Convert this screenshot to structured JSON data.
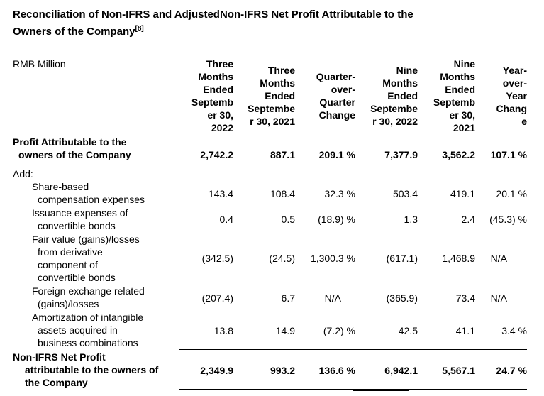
{
  "title": {
    "line1": "Reconciliation of Non-IFRS and AdjustedNon-IFRS Net Profit Attributable to the",
    "line2": "Owners of the Company",
    "footnote": "[8]"
  },
  "unit_label": "RMB Million",
  "columns": [
    [
      "Three",
      "Months",
      "Ended",
      "Septemb",
      "er 30,",
      "2022"
    ],
    [
      "Three",
      "Months",
      "Ended",
      "Septembe",
      "r 30, 2021"
    ],
    [
      "Quarter-",
      "over-",
      "Quarter",
      "Change"
    ],
    [
      "Nine",
      "Months",
      "Ended",
      "Septembe",
      "r 30, 2022"
    ],
    [
      "Nine",
      "Months",
      "Ended",
      "Septemb",
      "er 30,",
      "2021"
    ],
    [
      "Year-",
      "over-",
      "Year",
      "Chang",
      "e"
    ]
  ],
  "rows": {
    "profit": {
      "label": [
        "Profit Attributable to the",
        "owners of the Company"
      ],
      "values": [
        "2,742.2",
        "887.1",
        "209.1 %",
        "7,377.9",
        "3,562.2",
        "107.1 %"
      ]
    },
    "add_label": "Add:",
    "sbc": {
      "label": [
        "Share-based",
        "compensation expenses"
      ],
      "values": [
        "143.4",
        "108.4",
        "32.3 %",
        "503.4",
        "419.1",
        "20.1 %"
      ]
    },
    "issuance": {
      "label": [
        "Issuance expenses of",
        "convertible bonds"
      ],
      "values": [
        "0.4",
        "0.5",
        "(18.9) %",
        "1.3",
        "2.4",
        "(45.3) %"
      ]
    },
    "fair_value": {
      "label": [
        "Fair value (gains)/losses",
        "from derivative",
        "component of",
        "convertible bonds"
      ],
      "values": [
        "(342.5)",
        "(24.5)",
        "1,300.3 %",
        "(617.1)",
        "1,468.9",
        "N/A"
      ]
    },
    "fx": {
      "label": [
        "Foreign exchange related",
        "(gains)/losses"
      ],
      "values": [
        "(207.4)",
        "6.7",
        "N/A",
        "(365.9)",
        "73.4",
        "N/A"
      ]
    },
    "amort": {
      "label": [
        "Amortization of intangible",
        "assets acquired in",
        "business combinations"
      ],
      "values": [
        "13.8",
        "14.9",
        "(7.2) %",
        "42.5",
        "41.1",
        "3.4 %"
      ]
    },
    "nonifrs": {
      "label": [
        "Non-IFRS Net Profit",
        "attributable to the owners of",
        "the Company"
      ],
      "values": [
        "2,349.9",
        "993.2",
        "136.6 %",
        "6,942.1",
        "5,567.1",
        "24.7 %"
      ]
    }
  }
}
